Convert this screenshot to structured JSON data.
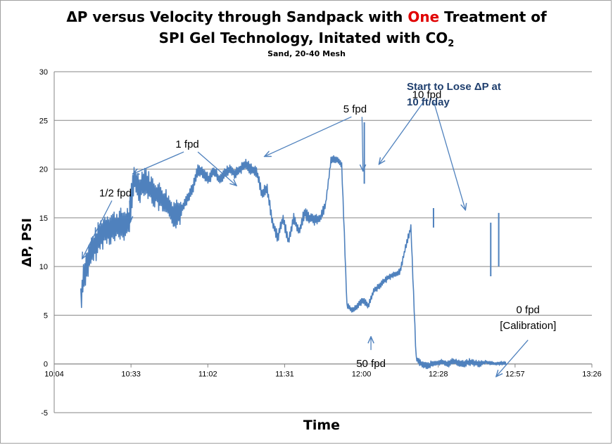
{
  "chart_data": {
    "type": "line",
    "title_line1_pre": "ΔP versus Velocity through Sandpack with ",
    "title_line1_red": "One",
    "title_line1_post": " Treatment of",
    "title_line2_pre": "SPI Gel Technology, Initated with CO",
    "title_line2_sub": "2",
    "subtitle": "Sand, 20-40 Mesh",
    "xlabel": "Time",
    "ylabel": "ΔP, PSI",
    "ylim": [
      -5,
      30
    ],
    "yticks": [
      "-5",
      "0",
      "5",
      "10",
      "15",
      "20",
      "25",
      "30"
    ],
    "xticks": [
      "10:04",
      "10:33",
      "11:02",
      "11:31",
      "12:00",
      "12:28",
      "12:57",
      "13:26"
    ],
    "xlim_minutes": [
      604,
      806
    ],
    "grid": true,
    "line_color": "#4f81bd",
    "annotation_color": "#1f3f6e",
    "series": [
      {
        "x_minutes": [
          614,
          615,
          616,
          618,
          620,
          622,
          624,
          626,
          628,
          630,
          632,
          633,
          634,
          636,
          638,
          640,
          642,
          644,
          646,
          648,
          650,
          652,
          654,
          656,
          658,
          660,
          662,
          664,
          666,
          668,
          670,
          672,
          674,
          676,
          678,
          680,
          682,
          684,
          686,
          688,
          690,
          692,
          694,
          696,
          698,
          700,
          702,
          704,
          706,
          708,
          710,
          712,
          714,
          716,
          718,
          720,
          722,
          724,
          726,
          728,
          730,
          732,
          734,
          736,
          738,
          740,
          742,
          744,
          746,
          748,
          750,
          752,
          754,
          756,
          758,
          760,
          762,
          764,
          766,
          768,
          770,
          772,
          774
        ],
        "values": [
          6.5,
          9,
          10,
          11.5,
          12.5,
          13.5,
          14,
          14,
          14.2,
          14.3,
          14.5,
          17,
          19,
          18,
          19,
          18,
          17.5,
          17,
          16.5,
          15.5,
          15.5,
          16,
          17,
          18,
          20,
          19.5,
          19,
          19.8,
          19,
          19.5,
          20,
          19.5,
          20,
          20.5,
          20,
          19.8,
          17.5,
          18,
          14.5,
          13,
          15,
          12.5,
          15,
          13.5,
          15.5,
          15,
          14.8,
          15,
          16.5,
          21,
          21,
          20.5,
          6,
          5.5,
          6,
          6.5,
          6,
          7.5,
          8,
          8.5,
          9,
          9.2,
          9.5,
          12,
          14,
          0.5,
          0,
          -0.2,
          0,
          0.1,
          0.2,
          0,
          0.3,
          0.1,
          0,
          0.2,
          0.1,
          0,
          0.2,
          0.1,
          0,
          0.1,
          0
        ]
      }
    ],
    "spikes": [
      {
        "x_minutes": 720.5,
        "low": 18.5,
        "high": 24.8
      },
      {
        "x_minutes": 746.5,
        "low": 14,
        "high": 16
      },
      {
        "x_minutes": 768,
        "low": 9,
        "high": 14.5
      },
      {
        "x_minutes": 771,
        "low": 10,
        "high": 15.5
      }
    ],
    "annotations": [
      {
        "text": "1/2 fpd",
        "x_minutes": 627,
        "y": 17.2
      },
      {
        "text": "1 fpd",
        "x_minutes": 654,
        "y": 22.2
      },
      {
        "text": "5 fpd",
        "x_minutes": 717,
        "y": 25.8
      },
      {
        "text": "10 fpd",
        "x_minutes": 744,
        "y": 27.3
      },
      {
        "text": "50 fpd",
        "x_minutes": 723,
        "y": -0.3
      },
      {
        "text": "0 fpd",
        "x_minutes": 782,
        "y": 5.2
      },
      {
        "text": "[Calibration]",
        "x_minutes": 782,
        "y": 3.6
      }
    ],
    "callout_line1": "Start to Lose ΔP at",
    "callout_line2": "10 ft/day"
  }
}
